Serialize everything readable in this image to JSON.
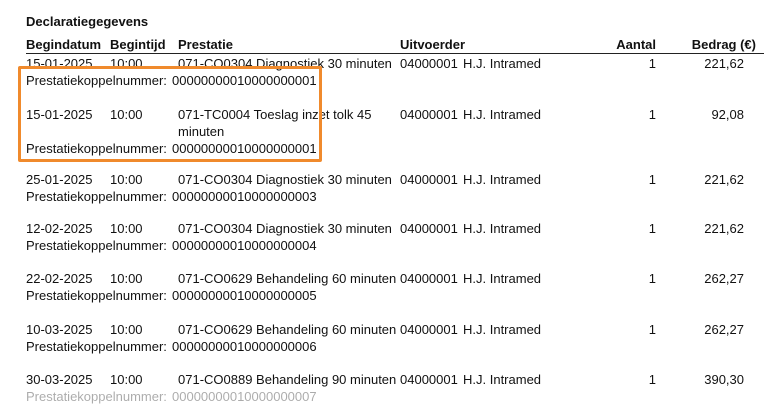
{
  "title": "Declaratiegegevens",
  "columns": {
    "begindatum": "Begindatum",
    "begintijd": "Begintijd",
    "prestatie": "Prestatie",
    "uitvoerder": "Uitvoerder",
    "aantal": "Aantal",
    "bedrag": "Bedrag (€)"
  },
  "koppel_label": "Prestatiekoppelnummer:",
  "highlight_color": "#f08a2c",
  "rows": [
    {
      "date": "15-01-2025",
      "time": "10:00",
      "prestatie": "071-CO0304 Diagnostiek 30 minuten",
      "prestatie2": "",
      "code": "04000001",
      "name": "H.J. Intramed",
      "aantal": "1",
      "bedrag": "221,62",
      "koppel": "00000000010000000001"
    },
    {
      "date": "15-01-2025",
      "time": "10:00",
      "prestatie": "071-TC0004 Toeslag inzet tolk 45",
      "prestatie2": "minuten",
      "code": "04000001",
      "name": "H.J. Intramed",
      "aantal": "1",
      "bedrag": "92,08",
      "koppel": "00000000010000000001"
    },
    {
      "date": "25-01-2025",
      "time": "10:00",
      "prestatie": "071-CO0304 Diagnostiek 30 minuten",
      "prestatie2": "",
      "code": "04000001",
      "name": "H.J. Intramed",
      "aantal": "1",
      "bedrag": "221,62",
      "koppel": "00000000010000000003"
    },
    {
      "date": "12-02-2025",
      "time": "10:00",
      "prestatie": "071-CO0304 Diagnostiek 30 minuten",
      "prestatie2": "",
      "code": "04000001",
      "name": "H.J. Intramed",
      "aantal": "1",
      "bedrag": "221,62",
      "koppel": "00000000010000000004"
    },
    {
      "date": "22-02-2025",
      "time": "10:00",
      "prestatie": "071-CO0629 Behandeling 60 minuten",
      "prestatie2": "",
      "code": "04000001",
      "name": "H.J. Intramed",
      "aantal": "1",
      "bedrag": "262,27",
      "koppel": "00000000010000000005"
    },
    {
      "date": "10-03-2025",
      "time": "10:00",
      "prestatie": "071-CO0629 Behandeling 60 minuten",
      "prestatie2": "",
      "code": "04000001",
      "name": "H.J. Intramed",
      "aantal": "1",
      "bedrag": "262,27",
      "koppel": "00000000010000000006"
    },
    {
      "date": "30-03-2025",
      "time": "10:00",
      "prestatie": "071-CO0889 Behandeling 90 minuten",
      "prestatie2": "",
      "code": "04000001",
      "name": "H.J. Intramed",
      "aantal": "1",
      "bedrag": "390,30",
      "koppel": "00000000010000000007"
    }
  ]
}
